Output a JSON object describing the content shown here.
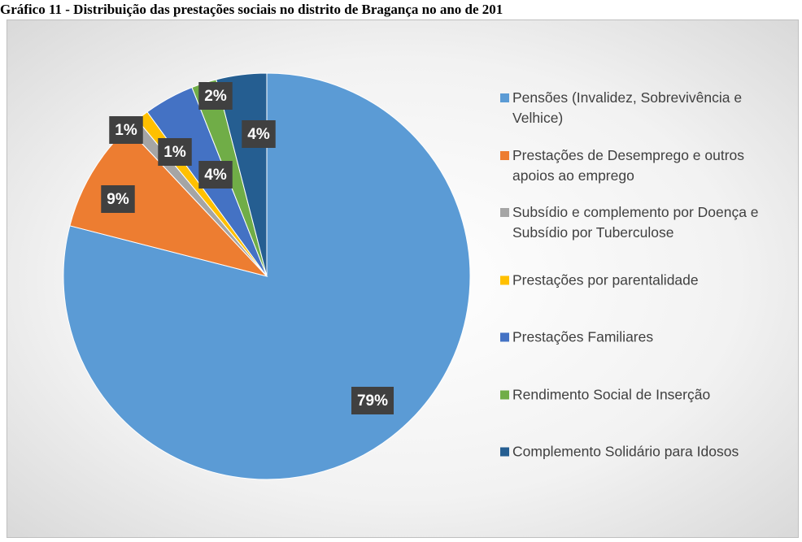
{
  "chart_data": {
    "type": "pie",
    "title": "Gráfico 11 - Distribuição das prestações sociais no distrito de Bragança no ano de 201",
    "categories": [
      "Pensões (Invalidez, Sobrevivência e Velhice)",
      "Prestações de Desemprego e outros apoios ao emprego",
      "Subsídio e complemento por Doença e Subsídio por Tuberculose",
      "Prestações por parentalidade",
      "Prestações Familiares",
      "Rendimento Social de Inserção",
      "Complemento Solidário para Idosos"
    ],
    "values": [
      79,
      9,
      1,
      1,
      4,
      2,
      4
    ],
    "value_labels": [
      "79%",
      "9%",
      "1%",
      "1%",
      "4%",
      "2%",
      "4%"
    ],
    "colors": [
      "#5b9bd5",
      "#ed7d31",
      "#a5a5a5",
      "#ffc000",
      "#4472c4",
      "#70ad47",
      "#255e91"
    ],
    "legend": "right"
  }
}
